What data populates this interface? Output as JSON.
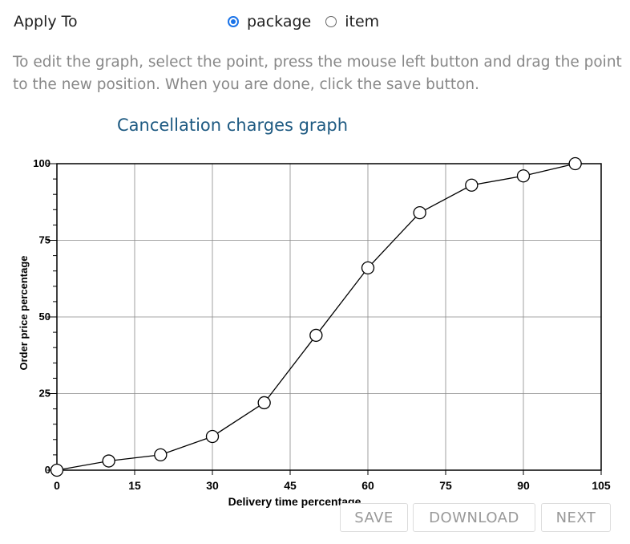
{
  "apply_to": {
    "label": "Apply To",
    "options": [
      {
        "label": "package",
        "checked": true
      },
      {
        "label": "item",
        "checked": false
      }
    ]
  },
  "instructions": "To edit the graph, select the point, press the mouse left button and drag the point to the new position. When you are done, click the save button.",
  "graph_title": "Cancellation charges graph",
  "chart_data": {
    "type": "line",
    "title": "Cancellation charges graph",
    "xlabel": "Delivery time percentage",
    "ylabel": "Order price percentage",
    "xlim": [
      0,
      105
    ],
    "ylim": [
      0,
      100
    ],
    "xticks": [
      0,
      15,
      30,
      45,
      60,
      75,
      90,
      105
    ],
    "yticks": [
      0,
      25,
      50,
      75,
      100
    ],
    "grid": true,
    "series": [
      {
        "x": [
          0,
          10,
          20,
          30,
          40,
          50,
          60,
          70,
          80,
          90,
          100
        ],
        "y": [
          0,
          3,
          5,
          11,
          22,
          44,
          66,
          84,
          93,
          96,
          100
        ]
      }
    ]
  },
  "buttons": {
    "save": "SAVE",
    "download": "DOWNLOAD",
    "next": "NEXT"
  }
}
